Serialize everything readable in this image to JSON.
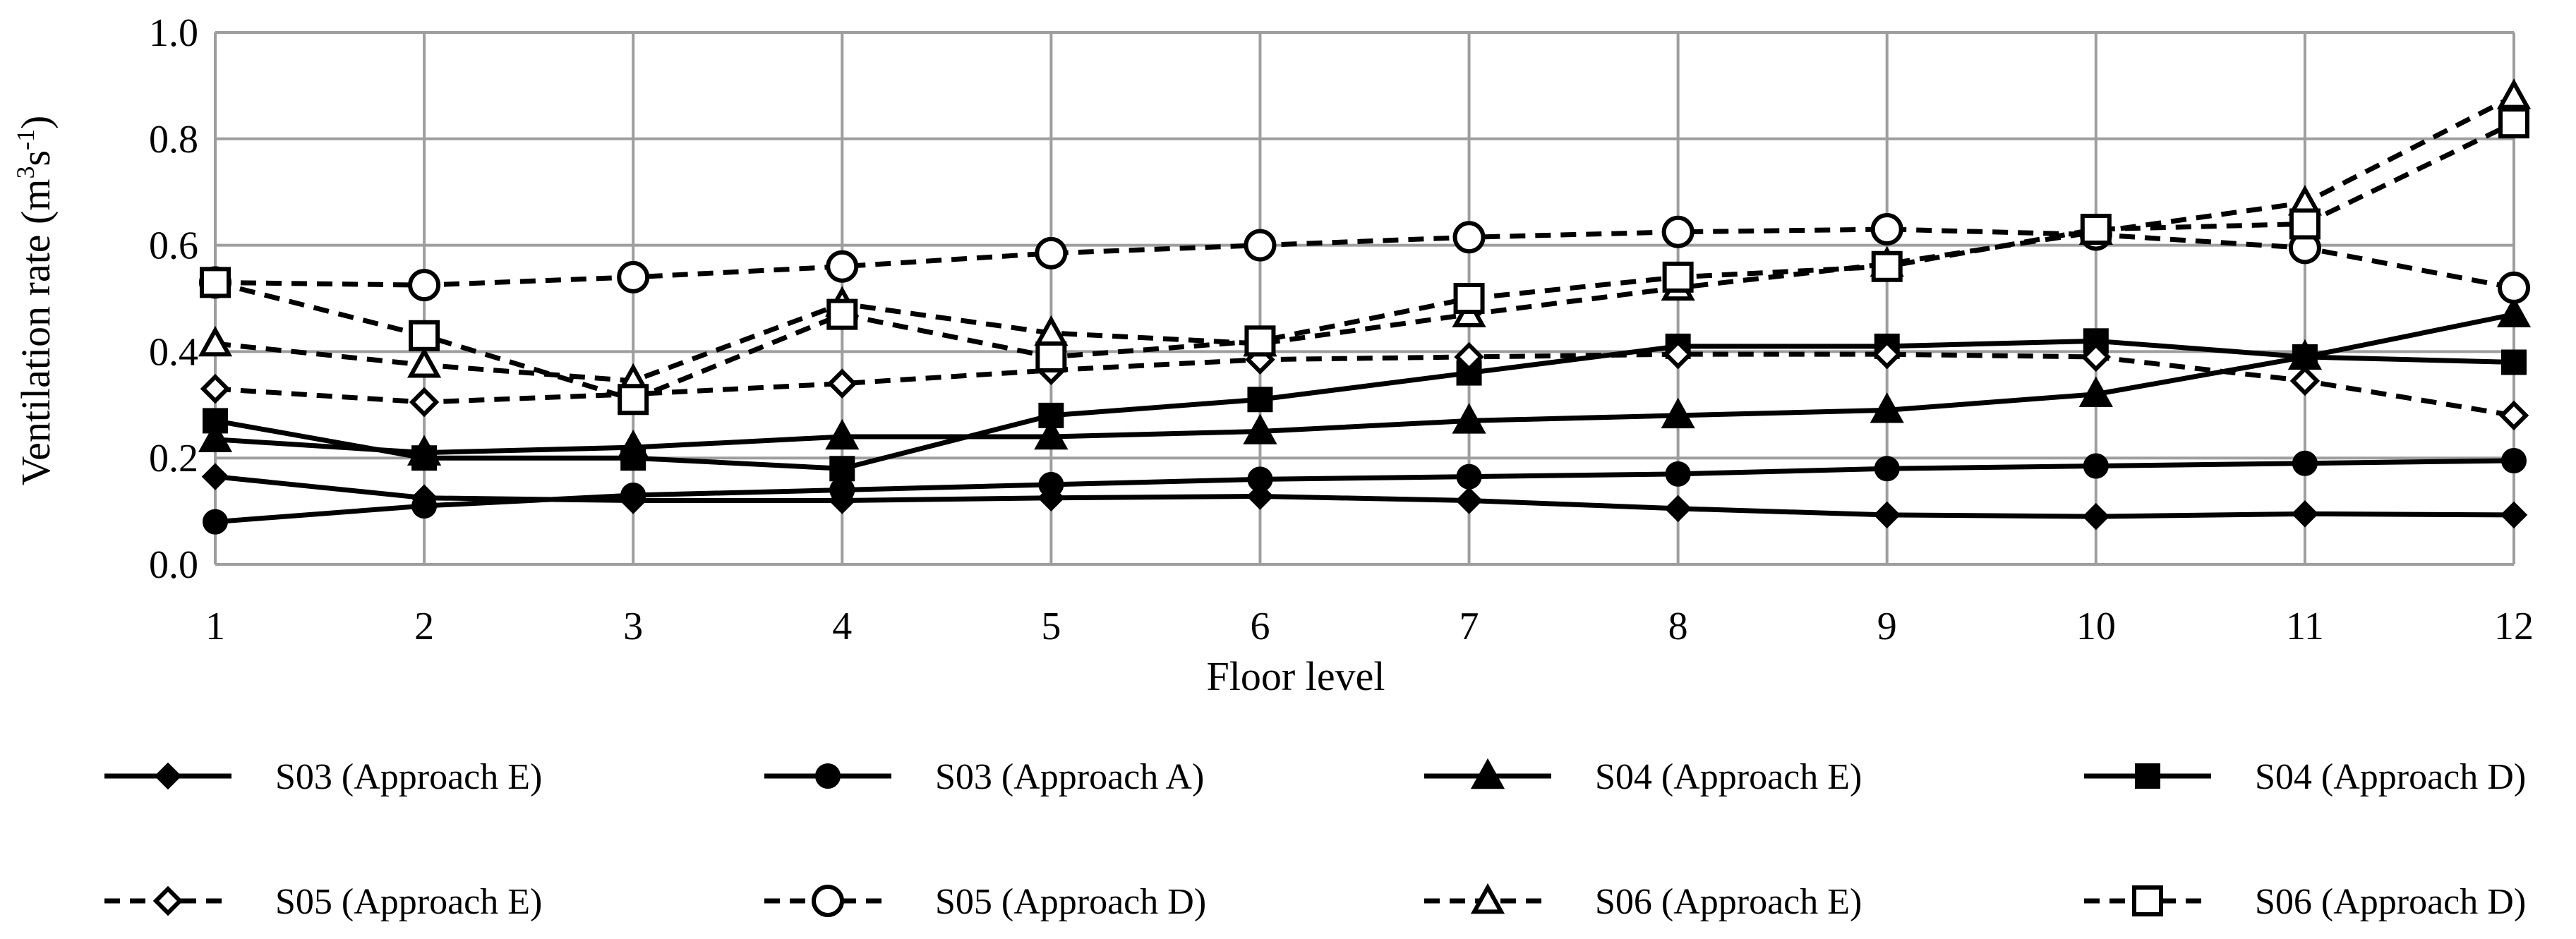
{
  "chart_data": {
    "type": "line",
    "title": "",
    "xlabel": "Floor level",
    "ylabel": "Ventilation rate (m3s-1)",
    "ylabel_parts": {
      "prefix": "Ventilation rate (m",
      "sup1": "3",
      "mid": "s",
      "sup2": "-1",
      "suffix": ")"
    },
    "x": [
      1,
      2,
      3,
      4,
      5,
      6,
      7,
      8,
      9,
      10,
      11,
      12
    ],
    "xticks": [
      "1",
      "2",
      "3",
      "4",
      "5",
      "6",
      "7",
      "8",
      "9",
      "10",
      "11",
      "12"
    ],
    "ylim": [
      0,
      1.0
    ],
    "yticks": [
      "0.0",
      "0.2",
      "0.4",
      "0.6",
      "0.8",
      "1.0"
    ],
    "grid": true,
    "legend_position": "bottom",
    "series": [
      {
        "name": "S03 (Approach E)",
        "dash": "solid",
        "marker": "diamond",
        "fill": "filled",
        "values": [
          0.165,
          0.125,
          0.12,
          0.12,
          0.125,
          0.128,
          0.12,
          0.105,
          0.093,
          0.09,
          0.095,
          0.093
        ]
      },
      {
        "name": "S03 (Approach A)",
        "dash": "solid",
        "marker": "circle",
        "fill": "filled",
        "values": [
          0.08,
          0.11,
          0.13,
          0.14,
          0.15,
          0.16,
          0.165,
          0.17,
          0.18,
          0.185,
          0.19,
          0.195
        ]
      },
      {
        "name": "S04 (Approach E)",
        "dash": "solid",
        "marker": "triangle",
        "fill": "filled",
        "values": [
          0.235,
          0.21,
          0.22,
          0.24,
          0.24,
          0.25,
          0.27,
          0.28,
          0.29,
          0.32,
          0.39,
          0.47
        ]
      },
      {
        "name": "S04 (Approach D)",
        "dash": "solid",
        "marker": "square",
        "fill": "filled",
        "values": [
          0.27,
          0.2,
          0.2,
          0.18,
          0.28,
          0.31,
          0.36,
          0.41,
          0.41,
          0.42,
          0.39,
          0.38
        ]
      },
      {
        "name": "S05 (Approach E)",
        "dash": "dashed",
        "marker": "diamond",
        "fill": "open",
        "values": [
          0.33,
          0.305,
          0.32,
          0.34,
          0.365,
          0.385,
          0.39,
          0.395,
          0.395,
          0.39,
          0.345,
          0.28
        ]
      },
      {
        "name": "S05 (Approach D)",
        "dash": "dashed",
        "marker": "circle",
        "fill": "open",
        "values": [
          0.53,
          0.525,
          0.54,
          0.56,
          0.585,
          0.6,
          0.615,
          0.625,
          0.63,
          0.62,
          0.595,
          0.52
        ]
      },
      {
        "name": "S06 (Approach E)",
        "dash": "dashed",
        "marker": "triangle",
        "fill": "open",
        "values": [
          0.415,
          0.375,
          0.345,
          0.49,
          0.435,
          0.415,
          0.47,
          0.52,
          0.565,
          0.625,
          0.68,
          0.88
        ]
      },
      {
        "name": "S06 (Approach D)",
        "dash": "dashed",
        "marker": "square",
        "fill": "open",
        "values": [
          0.53,
          0.43,
          0.31,
          0.47,
          0.39,
          0.42,
          0.5,
          0.54,
          0.56,
          0.63,
          0.64,
          0.83
        ]
      }
    ]
  }
}
